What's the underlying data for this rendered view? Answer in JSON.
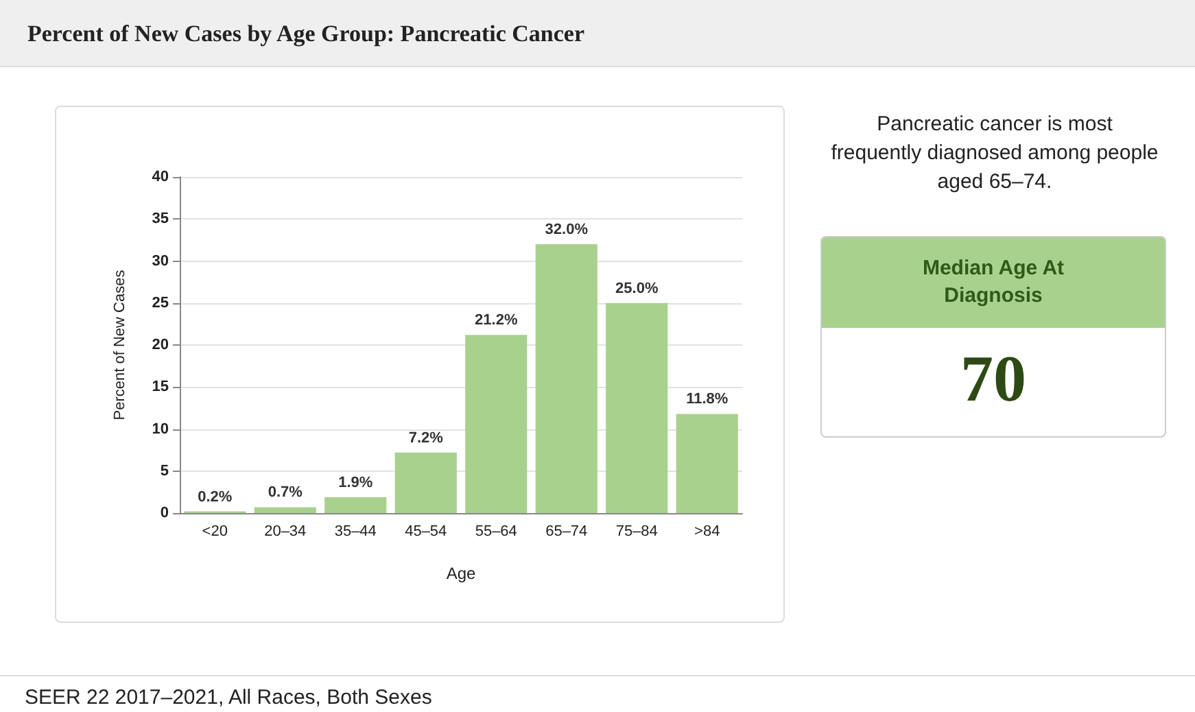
{
  "chart_data": {
    "type": "bar",
    "title": "Percent of New Cases by Age Group: Pancreatic Cancer",
    "xlabel": "Age",
    "ylabel": "Percent of New Cases",
    "categories": [
      "<20",
      "20–34",
      "35–44",
      "45–54",
      "55–64",
      "65–74",
      "75–84",
      ">84"
    ],
    "values": [
      0.2,
      0.7,
      1.9,
      7.2,
      21.2,
      32.0,
      25.0,
      11.8
    ],
    "value_labels": [
      "0.2%",
      "0.7%",
      "1.9%",
      "7.2%",
      "21.2%",
      "32.0%",
      "25.0%",
      "11.8%"
    ],
    "color": "#a9d18e",
    "ylim": [
      0,
      40
    ],
    "yticks": [
      0,
      5,
      10,
      15,
      20,
      25,
      30,
      35,
      40
    ],
    "grid": "y",
    "annotations": [
      "Pancreatic cancer is most frequently diagnosed among people aged 65–74.",
      "Median Age At Diagnosis",
      "70",
      "SEER 22 2017–2021, All Races, Both Sexes"
    ]
  }
}
